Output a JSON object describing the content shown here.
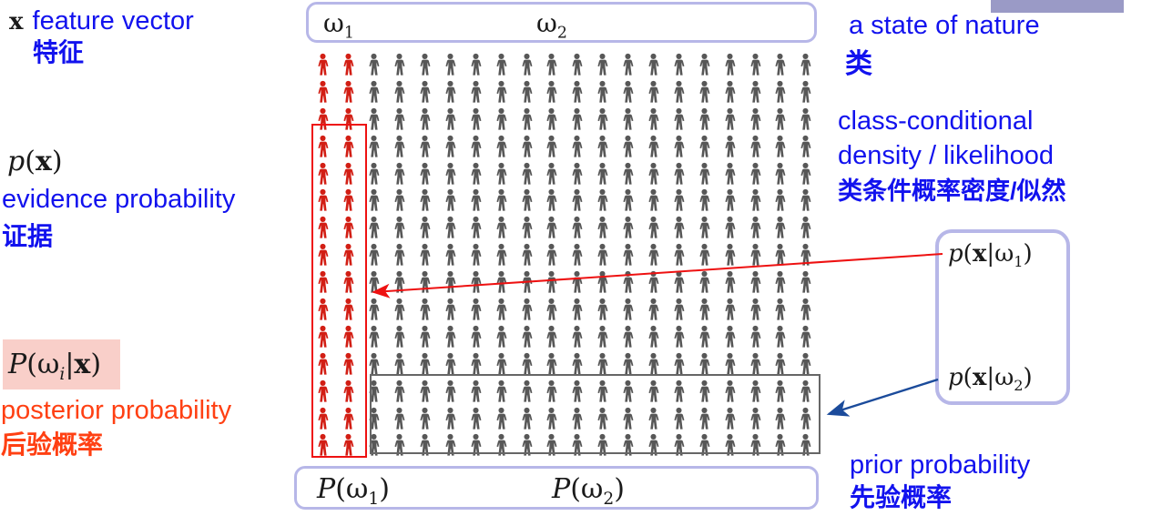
{
  "slide": {
    "feature": {
      "symbol": "x",
      "en": "feature vector",
      "zh": "特征"
    },
    "evidence": {
      "en": "evidence probability",
      "zh": "证据",
      "formula": {
        "func": "p",
        "open": "(",
        "arg": "x",
        "close": ")"
      }
    },
    "posterior": {
      "en": "posterior probability",
      "zh": "后验概率",
      "formula": {
        "func": "P",
        "open": "(ω",
        "sub": "i",
        "bar": "|",
        "arg": "x",
        "close": ")"
      }
    },
    "state_of_nature": {
      "en": "a state of nature",
      "zh": "类"
    },
    "class_conditional": {
      "en_line1": "class-conditional",
      "en_line2": "density / likelihood",
      "zh": "类条件概率密度/似然"
    },
    "prior": {
      "en": "prior probability",
      "zh": "先验概率"
    },
    "classes": {
      "omega1": {
        "base": "ω",
        "sub": "1"
      },
      "omega2": {
        "base": "ω",
        "sub": "2"
      }
    },
    "priors": {
      "p1": {
        "func": "P",
        "open": "(ω",
        "sub": "1",
        "close": ")"
      },
      "p2": {
        "func": "P",
        "open": "(ω",
        "sub": "2",
        "close": ")"
      }
    },
    "likelihoods": {
      "l1": {
        "func": "p",
        "open": "(",
        "arg": "x",
        "bar": "|ω",
        "sub": "1",
        "close": ")"
      },
      "l2": {
        "func": "p",
        "open": "(",
        "arg": "x",
        "bar": "|ω",
        "sub": "2",
        "close": ")"
      }
    }
  },
  "grid": {
    "rows": 15,
    "cols": 20,
    "red_cols": 2,
    "red_person_count": 30,
    "gray_person_count": 270,
    "total_person_count": 300
  },
  "colors": {
    "blue": "#1212ee",
    "orange": "#ff4013",
    "red_icon": "#d21e14",
    "gray_icon": "#575757",
    "lavender": "#b7b7e8",
    "pink_highlight": "#f9cfc9",
    "red_accent": "#ee1111",
    "navy_arrow": "#1b4b9b",
    "gray_rect": "#666666",
    "purple_bar": "#9a9ac6"
  }
}
